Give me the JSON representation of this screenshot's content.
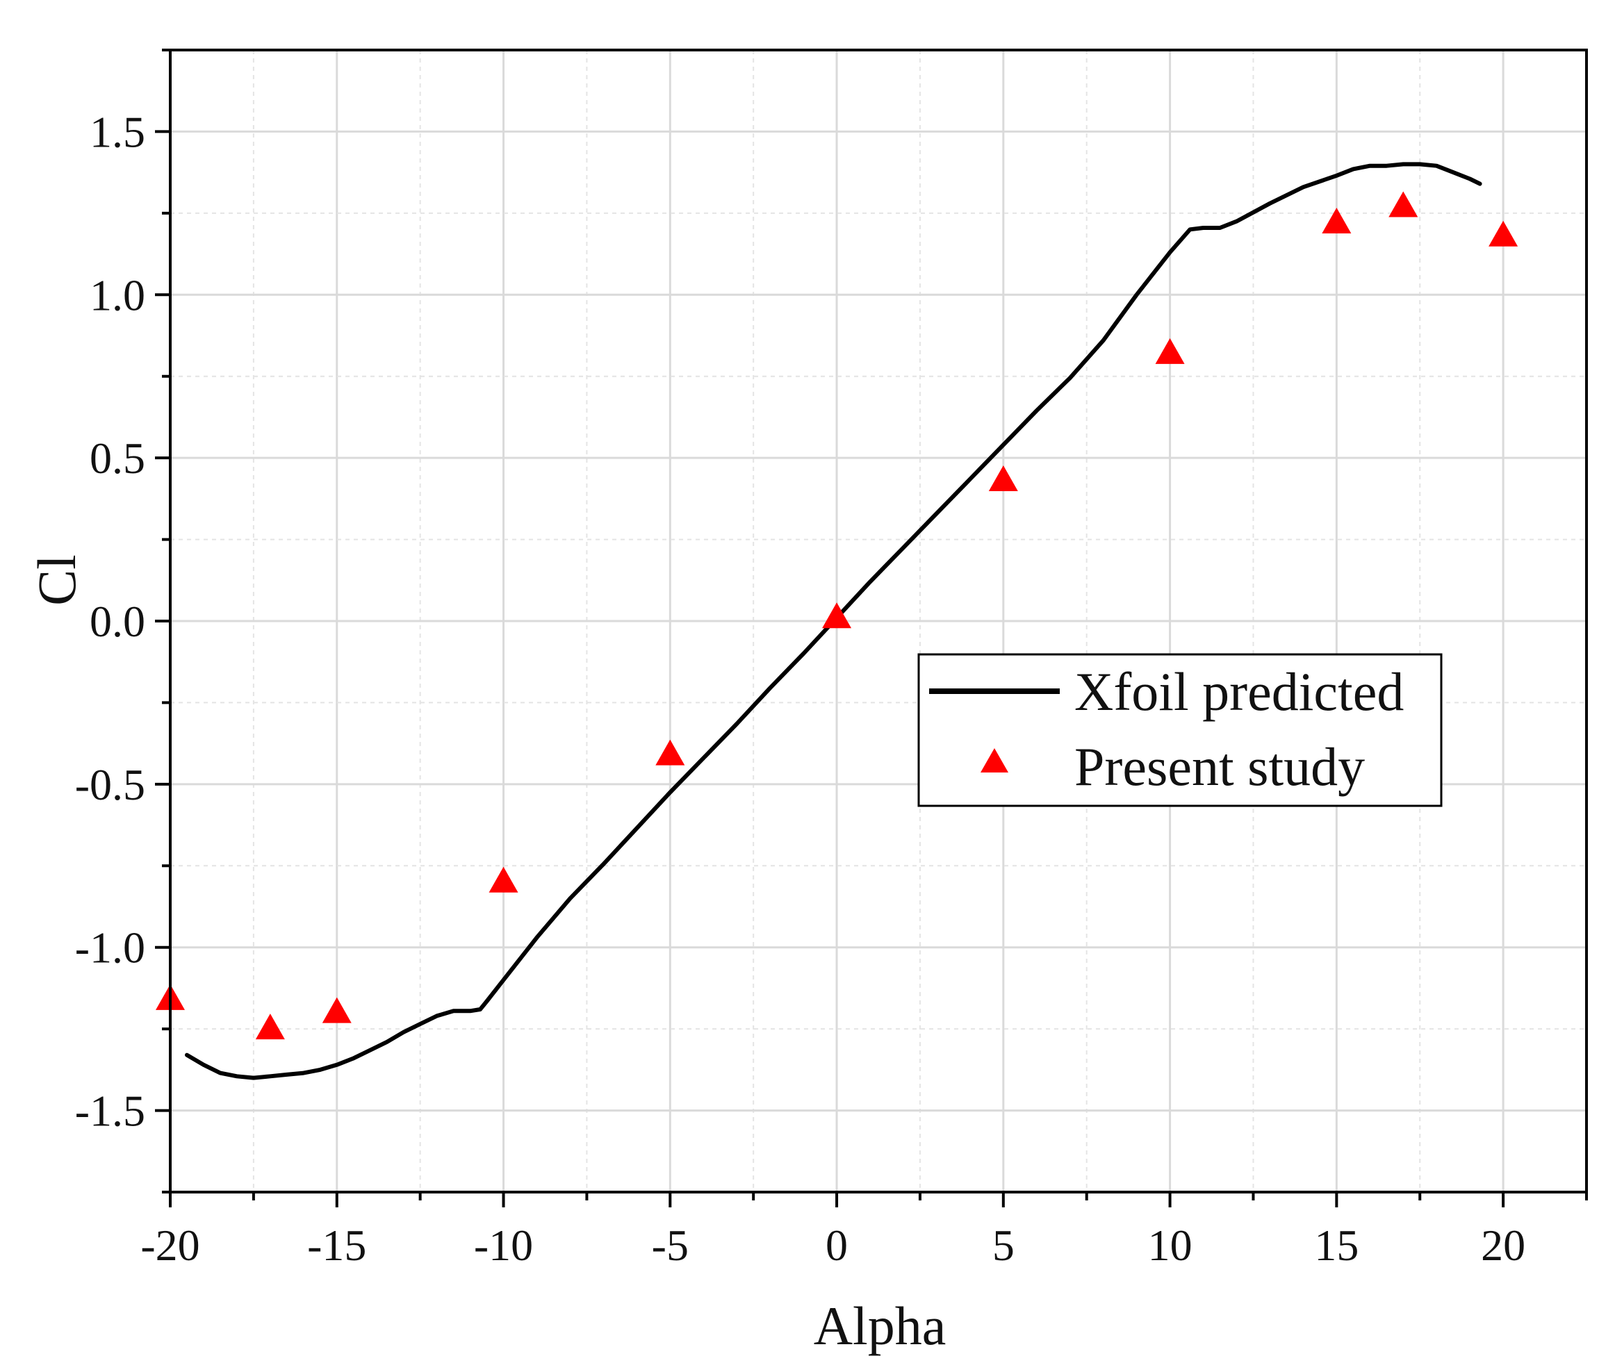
{
  "chart_data": {
    "type": "line",
    "xlabel": "Alpha",
    "ylabel": "Cl",
    "xlim": [
      -20,
      22.5
    ],
    "ylim": [
      -1.75,
      1.75
    ],
    "xticks": [
      -20,
      -15,
      -10,
      -5,
      0,
      5,
      10,
      15,
      20
    ],
    "xtick_labels": [
      "-20",
      "-15",
      "-10",
      "-5",
      "0",
      "5",
      "10",
      "15",
      "20"
    ],
    "yticks": [
      -1.5,
      -1.0,
      -0.5,
      0.0,
      0.5,
      1.0,
      1.5
    ],
    "ytick_labels": [
      "-1.5",
      "-1.0",
      "-0.5",
      "0.0",
      "0.5",
      "1.0",
      "1.5"
    ],
    "grid": true,
    "legend_position": "center-right",
    "series": [
      {
        "name": "Xfoil predicted",
        "kind": "line",
        "color": "#000000",
        "x": [
          -19.5,
          -19.0,
          -18.5,
          -18.0,
          -17.5,
          -17.0,
          -16.5,
          -16.0,
          -15.5,
          -15.0,
          -14.5,
          -14.0,
          -13.5,
          -13.0,
          -12.5,
          -12.0,
          -11.5,
          -11.0,
          -10.7,
          -10.5,
          -10.0,
          -9.0,
          -8.0,
          -7.0,
          -6.0,
          -5.0,
          -4.0,
          -3.0,
          -2.0,
          -1.0,
          0.0,
          1.0,
          2.0,
          3.0,
          4.0,
          5.0,
          6.0,
          7.0,
          8.0,
          9.0,
          10.0,
          10.6,
          11.0,
          11.5,
          12.0,
          13.0,
          14.0,
          15.0,
          15.5,
          16.0,
          16.5,
          17.0,
          17.5,
          18.0,
          18.5,
          19.0,
          19.3
        ],
        "y": [
          -1.33,
          -1.36,
          -1.385,
          -1.395,
          -1.4,
          -1.395,
          -1.39,
          -1.385,
          -1.375,
          -1.36,
          -1.34,
          -1.315,
          -1.29,
          -1.26,
          -1.235,
          -1.21,
          -1.195,
          -1.195,
          -1.19,
          -1.165,
          -1.1,
          -0.97,
          -0.85,
          -0.745,
          -0.635,
          -0.525,
          -0.42,
          -0.315,
          -0.205,
          -0.1,
          0.01,
          0.12,
          0.225,
          0.33,
          0.435,
          0.54,
          0.645,
          0.745,
          0.86,
          1.0,
          1.13,
          1.2,
          1.205,
          1.205,
          1.225,
          1.28,
          1.33,
          1.365,
          1.385,
          1.395,
          1.395,
          1.4,
          1.4,
          1.395,
          1.375,
          1.355,
          1.34
        ]
      },
      {
        "name": "Present study",
        "kind": "scatter",
        "marker": "triangle",
        "color": "#ff0000",
        "x": [
          -20,
          -17,
          -15,
          -10,
          -5,
          0,
          5,
          10,
          15,
          17,
          20
        ],
        "y": [
          -1.16,
          -1.25,
          -1.2,
          -0.8,
          -0.41,
          0.01,
          0.43,
          0.82,
          1.22,
          1.27,
          1.18
        ]
      }
    ]
  }
}
